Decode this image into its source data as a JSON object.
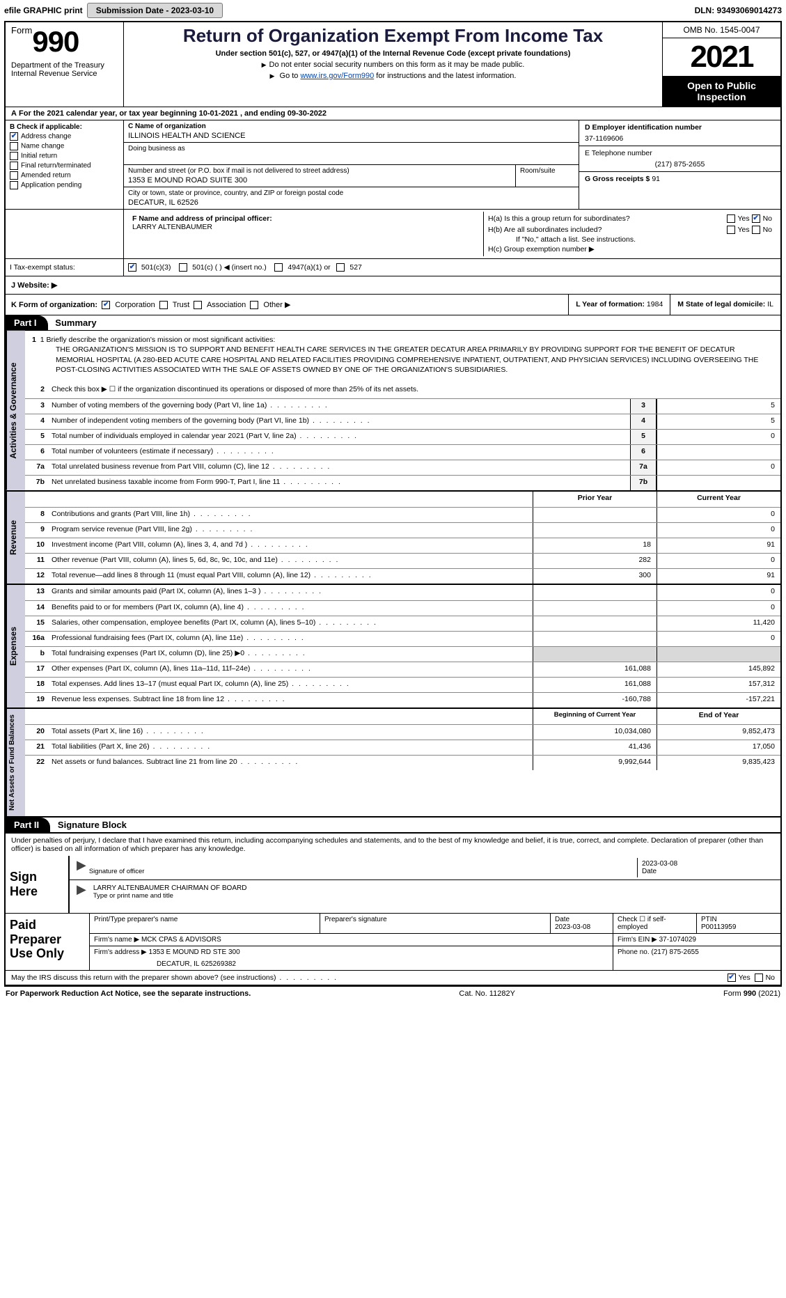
{
  "topbar": {
    "efile": "efile GRAPHIC print",
    "submission_label": "Submission Date - 2023-03-10",
    "dln_label": "DLN: 93493069014273"
  },
  "header": {
    "form_word": "Form",
    "form_number": "990",
    "dept": "Department of the Treasury",
    "irs": "Internal Revenue Service",
    "title": "Return of Organization Exempt From Income Tax",
    "subtitle": "Under section 501(c), 527, or 4947(a)(1) of the Internal Revenue Code (except private foundations)",
    "note1": "Do not enter social security numbers on this form as it may be made public.",
    "note2_pre": "Go to ",
    "note2_link": "www.irs.gov/Form990",
    "note2_post": " for instructions and the latest information.",
    "omb": "OMB No. 1545-0047",
    "year": "2021",
    "open_public": "Open to Public Inspection"
  },
  "sectionA": "For the 2021 calendar year, or tax year beginning 10-01-2021   , and ending 09-30-2022",
  "boxB": {
    "title": "B Check if applicable:",
    "items": [
      {
        "label": "Address change",
        "checked": true
      },
      {
        "label": "Name change",
        "checked": false
      },
      {
        "label": "Initial return",
        "checked": false
      },
      {
        "label": "Final return/terminated",
        "checked": false
      },
      {
        "label": "Amended return",
        "checked": false
      },
      {
        "label": "Application pending",
        "checked": false
      }
    ]
  },
  "boxC": {
    "name_label": "C Name of organization",
    "name": "ILLINOIS HEALTH AND SCIENCE",
    "dba_label": "Doing business as",
    "street_label": "Number and street (or P.O. box if mail is not delivered to street address)",
    "room_label": "Room/suite",
    "street": "1353 E MOUND ROAD SUITE 300",
    "city_label": "City or town, state or province, country, and ZIP or foreign postal code",
    "city": "DECATUR, IL  62526"
  },
  "boxD": {
    "label": "D Employer identification number",
    "value": "37-1169606"
  },
  "boxE": {
    "label": "E Telephone number",
    "value": "(217) 875-2655"
  },
  "boxG": {
    "label": "G Gross receipts $",
    "value": "91"
  },
  "boxF": {
    "label": "F  Name and address of principal officer:",
    "name": "LARRY ALTENBAUMER"
  },
  "boxH": {
    "ha": "H(a)  Is this a group return for subordinates?",
    "hb": "H(b)  Are all subordinates included?",
    "hb_note": "If \"No,\" attach a list. See instructions.",
    "hc": "H(c)  Group exemption number ▶",
    "yes": "Yes",
    "no": "No"
  },
  "taxI": {
    "label": "I   Tax-exempt status:",
    "opt1": "501(c)(3)",
    "opt2": "501(c) (  ) ◀ (insert no.)",
    "opt3": "4947(a)(1) or",
    "opt4": "527"
  },
  "website": {
    "label": "J   Website: ▶"
  },
  "boxK": {
    "label": "K Form of organization:",
    "opts": [
      "Corporation",
      "Trust",
      "Association",
      "Other ▶"
    ],
    "corp_checked": true
  },
  "boxL": {
    "label": "L Year of formation:",
    "value": "1984"
  },
  "boxM": {
    "label": "M State of legal domicile:",
    "value": "IL"
  },
  "partI": {
    "tag": "Part I",
    "title": "Summary"
  },
  "summary": {
    "line1_label": "1  Briefly describe the organization's mission or most significant activities:",
    "mission": "THE ORGANIZATION'S MISSION IS TO SUPPORT AND BENEFIT HEALTH CARE SERVICES IN THE GREATER DECATUR AREA PRIMARILY BY PROVIDING SUPPORT FOR THE BENEFIT OF DECATUR MEMORIAL HOSPITAL (A 280-BED ACUTE CARE HOSPITAL AND RELATED FACILITIES PROVIDING COMPREHENSIVE INPATIENT, OUTPATIENT, AND PHYSICIAN SERVICES) INCLUDING OVERSEEING THE POST-CLOSING ACTIVITIES ASSOCIATED WITH THE SALE OF ASSETS OWNED BY ONE OF THE ORGANIZATION'S SUBSIDIARIES.",
    "line2": "Check this box ▶ ☐  if the organization discontinued its operations or disposed of more than 25% of its net assets.",
    "rows": [
      {
        "n": "3",
        "desc": "Number of voting members of the governing body (Part VI, line 1a)",
        "box": "3",
        "val": "5"
      },
      {
        "n": "4",
        "desc": "Number of independent voting members of the governing body (Part VI, line 1b)",
        "box": "4",
        "val": "5"
      },
      {
        "n": "5",
        "desc": "Total number of individuals employed in calendar year 2021 (Part V, line 2a)",
        "box": "5",
        "val": "0"
      },
      {
        "n": "6",
        "desc": "Total number of volunteers (estimate if necessary)",
        "box": "6",
        "val": ""
      },
      {
        "n": "7a",
        "desc": "Total unrelated business revenue from Part VIII, column (C), line 12",
        "box": "7a",
        "val": "0"
      },
      {
        "n": "7b",
        "desc": "Net unrelated business taxable income from Form 990-T, Part I, line 11",
        "box": "7b",
        "val": ""
      }
    ]
  },
  "revenue": {
    "hdr_prior": "Prior Year",
    "hdr_curr": "Current Year",
    "rows": [
      {
        "n": "8",
        "desc": "Contributions and grants (Part VIII, line 1h)",
        "prior": "",
        "curr": "0"
      },
      {
        "n": "9",
        "desc": "Program service revenue (Part VIII, line 2g)",
        "prior": "",
        "curr": "0"
      },
      {
        "n": "10",
        "desc": "Investment income (Part VIII, column (A), lines 3, 4, and 7d )",
        "prior": "18",
        "curr": "91"
      },
      {
        "n": "11",
        "desc": "Other revenue (Part VIII, column (A), lines 5, 6d, 8c, 9c, 10c, and 11e)",
        "prior": "282",
        "curr": "0"
      },
      {
        "n": "12",
        "desc": "Total revenue—add lines 8 through 11 (must equal Part VIII, column (A), line 12)",
        "prior": "300",
        "curr": "91"
      }
    ]
  },
  "expenses": {
    "rows": [
      {
        "n": "13",
        "desc": "Grants and similar amounts paid (Part IX, column (A), lines 1–3 )",
        "prior": "",
        "curr": "0"
      },
      {
        "n": "14",
        "desc": "Benefits paid to or for members (Part IX, column (A), line 4)",
        "prior": "",
        "curr": "0"
      },
      {
        "n": "15",
        "desc": "Salaries, other compensation, employee benefits (Part IX, column (A), lines 5–10)",
        "prior": "",
        "curr": "11,420"
      },
      {
        "n": "16a",
        "desc": "Professional fundraising fees (Part IX, column (A), line 11e)",
        "prior": "",
        "curr": "0"
      },
      {
        "n": "b",
        "desc": "Total fundraising expenses (Part IX, column (D), line 25) ▶0",
        "prior": "shade",
        "curr": "shade"
      },
      {
        "n": "17",
        "desc": "Other expenses (Part IX, column (A), lines 11a–11d, 11f–24e)",
        "prior": "161,088",
        "curr": "145,892"
      },
      {
        "n": "18",
        "desc": "Total expenses. Add lines 13–17 (must equal Part IX, column (A), line 25)",
        "prior": "161,088",
        "curr": "157,312"
      },
      {
        "n": "19",
        "desc": "Revenue less expenses. Subtract line 18 from line 12",
        "prior": "-160,788",
        "curr": "-157,221"
      }
    ]
  },
  "netassets": {
    "hdr_begin": "Beginning of Current Year",
    "hdr_end": "End of Year",
    "rows": [
      {
        "n": "20",
        "desc": "Total assets (Part X, line 16)",
        "prior": "10,034,080",
        "curr": "9,852,473"
      },
      {
        "n": "21",
        "desc": "Total liabilities (Part X, line 26)",
        "prior": "41,436",
        "curr": "17,050"
      },
      {
        "n": "22",
        "desc": "Net assets or fund balances. Subtract line 21 from line 20",
        "prior": "9,992,644",
        "curr": "9,835,423"
      }
    ]
  },
  "partII": {
    "tag": "Part II",
    "title": "Signature Block"
  },
  "perjury": "Under penalties of perjury, I declare that I have examined this return, including accompanying schedules and statements, and to the best of my knowledge and belief, it is true, correct, and complete. Declaration of preparer (other than officer) is based on all information of which preparer has any knowledge.",
  "sign": {
    "here": "Sign Here",
    "sig_label": "Signature of officer",
    "date": "2023-03-08",
    "date_label": "Date",
    "name": "LARRY ALTENBAUMER  CHAIRMAN OF BOARD",
    "name_label": "Type or print name and title"
  },
  "prep": {
    "title": "Paid Preparer Use Only",
    "h_name": "Print/Type preparer's name",
    "h_sig": "Preparer's signature",
    "h_date": "Date",
    "date": "2023-03-08",
    "self_emp": "Check ☐ if self-employed",
    "ptin_label": "PTIN",
    "ptin": "P00113959",
    "firm_name_label": "Firm's name    ▶",
    "firm_name": "MCK CPAS & ADVISORS",
    "firm_ein_label": "Firm's EIN ▶",
    "firm_ein": "37-1074029",
    "firm_addr_label": "Firm's address ▶",
    "firm_addr1": "1353 E MOUND RD STE 300",
    "firm_addr2": "DECATUR, IL  625269382",
    "phone_label": "Phone no.",
    "phone": "(217) 875-2655"
  },
  "discuss": {
    "q": "May the IRS discuss this return with the preparer shown above? (see instructions)",
    "yes": "Yes",
    "no": "No"
  },
  "footer": {
    "left": "For Paperwork Reduction Act Notice, see the separate instructions.",
    "mid": "Cat. No. 11282Y",
    "right": "Form 990 (2021)"
  },
  "vtabs": {
    "gov": "Activities & Governance",
    "rev": "Revenue",
    "exp": "Expenses",
    "net": "Net Assets or Fund Balances"
  }
}
